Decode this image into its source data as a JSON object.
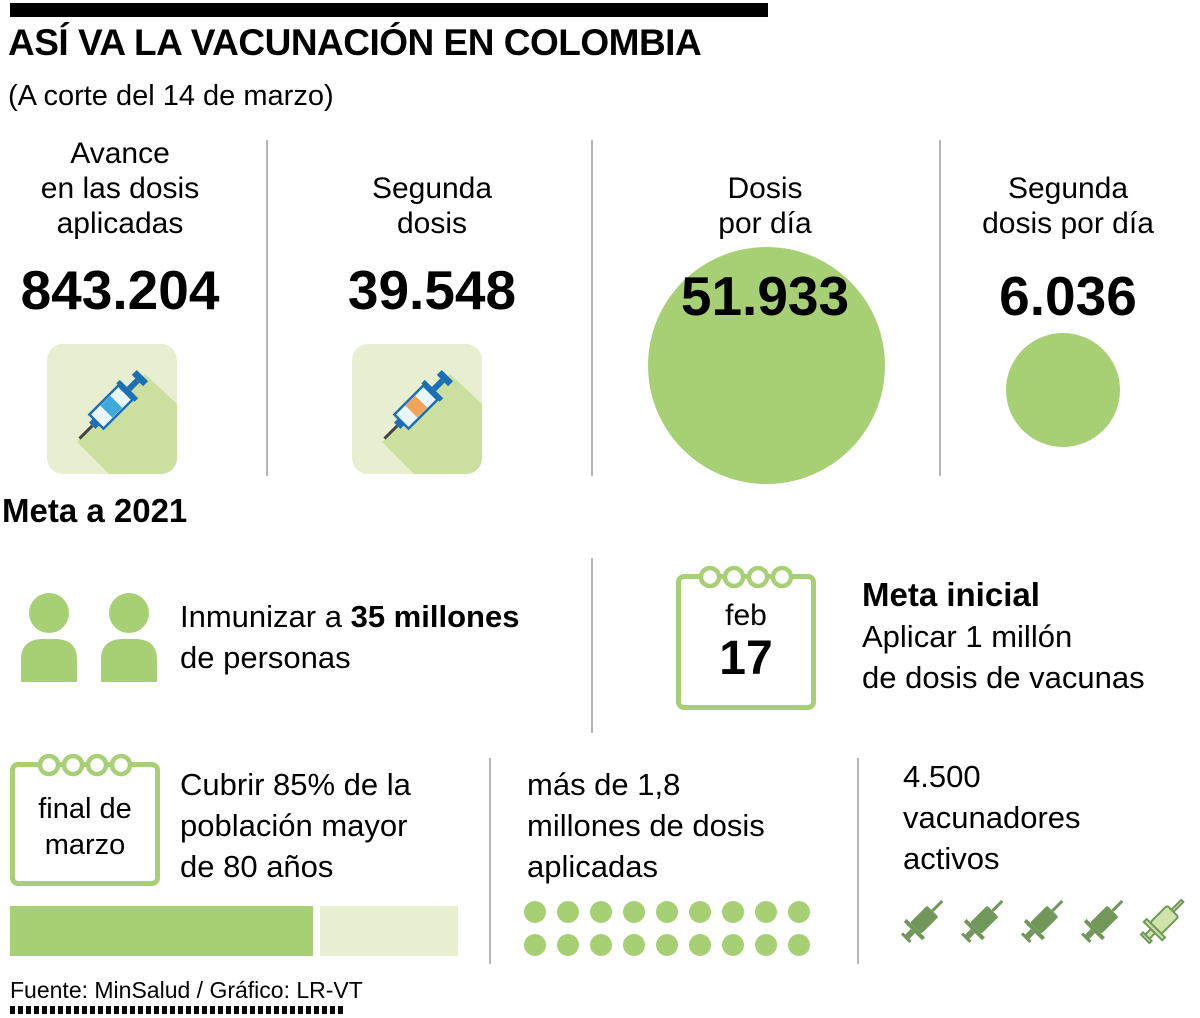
{
  "header": {
    "title": "ASÍ VA LA VACUNACIÓN EN COLOMBIA",
    "subtitle": "(A corte del 14 de marzo)"
  },
  "stats": [
    {
      "label": "Avance\nen las dosis\naplicadas",
      "value": "843.204",
      "icon": "syringe-icon"
    },
    {
      "label": "Segunda\ndosis",
      "value": "39.548",
      "icon": "syringe-icon"
    },
    {
      "label": "Dosis\npor día",
      "value": "51.933",
      "icon": "green-circle"
    },
    {
      "label": "Segunda\ndosis por día",
      "value": "6.036",
      "icon": "green-circle"
    }
  ],
  "goal": {
    "heading": "Meta a 2021",
    "immunize": {
      "prefix": "Inmunizar a ",
      "bold": "35 millones",
      "suffix": "de personas",
      "icon": "people-icon"
    },
    "calendar_feb": {
      "month": "feb",
      "day": "17",
      "icon": "calendar-icon"
    },
    "initial_goal": {
      "title": "Meta inicial",
      "body": "Aplicar 1 millón\nde dosis de vacunas"
    }
  },
  "march": {
    "calendar": {
      "text": "final de\nmarzo",
      "icon": "calendar-icon"
    },
    "coverage": "Cubrir 85% de la\npoblación mayor\nde 80 años"
  },
  "doses": {
    "text": "más de 1,8\nmillones de dosis\naplicadas",
    "rows": 2,
    "dots_per_row": 9,
    "icon": "dot-grid"
  },
  "vaccinators": {
    "text": "4.500\nvacunadores\nactivos",
    "full_syringes": 4,
    "partial_syringes": 1,
    "icon": "syringe-row"
  },
  "footer": {
    "source": "Fuente: MinSalud / Gráfico: LR-VT"
  },
  "colors": {
    "green": "#a7cf74",
    "light_green": "#e7efd0",
    "syringe_dark": "#71975a",
    "syringe_light": "#cfe3ab",
    "black": "#000000"
  },
  "chart_data": {
    "type": "table",
    "title": "ASÍ VA LA VACUNACIÓN EN COLOMBIA",
    "subtitle": "A corte del 14 de marzo",
    "categories": [
      "Avance en las dosis aplicadas",
      "Segunda dosis",
      "Dosis por día",
      "Segunda dosis por día",
      "Meta a 2021: personas a inmunizar",
      "Meta inicial (17 feb): dosis a aplicar",
      "Meta final de marzo: cobertura población mayor de 80 años",
      "Dosis aplicadas a final de marzo",
      "Vacunadores activos"
    ],
    "values": [
      843204,
      39548,
      51933,
      6036,
      35000000,
      1000000,
      "85%",
      ">1800000",
      4500
    ]
  }
}
